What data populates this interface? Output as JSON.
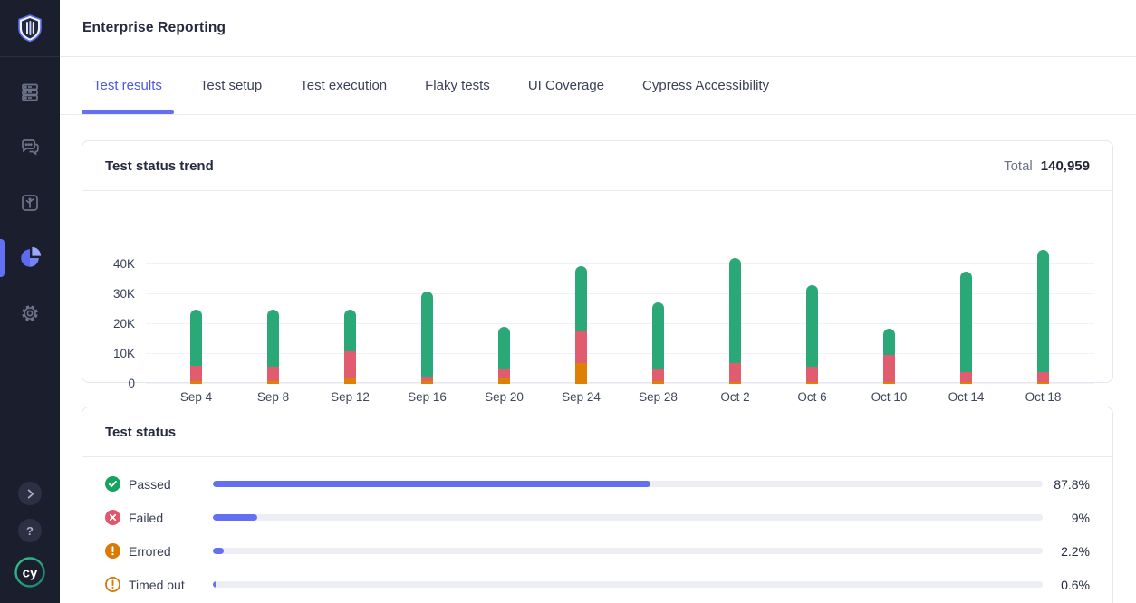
{
  "header": {
    "title": "Enterprise Reporting"
  },
  "colors": {
    "accent_indigo": "#6470f3",
    "tab_active": "#4a57e8",
    "sidebar_bg": "#1b1e2c",
    "chart_passed": "#2ba878",
    "chart_failed": "#e25c6f",
    "chart_errored": "#de8005",
    "icon_passed": "#16a35f",
    "icon_failed": "#e4566b",
    "icon_errored": "#db7a03",
    "icon_timedout": "#d97a06"
  },
  "sidebar": {
    "logo_icon": "shield-logo-icon",
    "items": [
      {
        "name": "runs",
        "icon": "server-stack-icon",
        "active": false
      },
      {
        "name": "messages",
        "icon": "chat-bubbles-icon",
        "active": false
      },
      {
        "name": "branches",
        "icon": "branch-box-icon",
        "active": false
      },
      {
        "name": "insights",
        "icon": "pie-chart-icon",
        "active": true
      },
      {
        "name": "settings",
        "icon": "gear-icon",
        "active": false
      }
    ],
    "bottom": [
      {
        "name": "expand",
        "icon": "chevron-right-icon"
      },
      {
        "name": "help",
        "icon": "question-mark-icon",
        "label": "?"
      },
      {
        "name": "cypress",
        "icon": "cypress-logo-icon",
        "label": "cy"
      }
    ]
  },
  "tabs": {
    "items": [
      {
        "label": "Test results",
        "active": true
      },
      {
        "label": "Test setup",
        "active": false
      },
      {
        "label": "Test execution",
        "active": false
      },
      {
        "label": "Flaky tests",
        "active": false
      },
      {
        "label": "UI Coverage",
        "active": false
      },
      {
        "label": "Cypress Accessibility",
        "active": false
      }
    ]
  },
  "trend_card": {
    "title": "Test status trend",
    "total_label": "Total",
    "total_value": "140,959"
  },
  "chart_data": {
    "type": "bar",
    "stacked": true,
    "title": "Test status trend",
    "categories": [
      "Sep 4",
      "Sep 8",
      "Sep 12",
      "Sep 16",
      "Sep 20",
      "Sep 24",
      "Sep 28",
      "Oct 2",
      "Oct 6",
      "Oct 10",
      "Oct 14",
      "Oct 18"
    ],
    "series": [
      {
        "name": "Errored",
        "color": "#de8005",
        "values": [
          800,
          800,
          2000,
          800,
          2000,
          7000,
          800,
          600,
          700,
          500,
          600,
          600
        ]
      },
      {
        "name": "Failed",
        "color": "#e25c6f",
        "values": [
          5200,
          5000,
          9000,
          1700,
          3000,
          10500,
          4200,
          6500,
          5000,
          9200,
          3200,
          3200
        ]
      },
      {
        "name": "Passed",
        "color": "#2ba878",
        "values": [
          19000,
          19200,
          14000,
          28500,
          14000,
          22000,
          22300,
          35000,
          27300,
          8900,
          33900,
          41000
        ]
      }
    ],
    "yticks": [
      {
        "value": 0,
        "label": "0"
      },
      {
        "value": 10000,
        "label": "10K"
      },
      {
        "value": 20000,
        "label": "20K"
      },
      {
        "value": 30000,
        "label": "30K"
      },
      {
        "value": 40000,
        "label": "40K"
      }
    ],
    "ylim": [
      0,
      50000
    ],
    "grid": true,
    "legend": false
  },
  "status_card": {
    "title": "Test status",
    "bar_scale": 0.6,
    "rows": [
      {
        "label": "Passed",
        "value": 87.8,
        "value_label": "87.8%",
        "icon": "check-circle-icon",
        "color": "#16a35f",
        "style": "filled"
      },
      {
        "label": "Failed",
        "value": 9,
        "value_label": "9%",
        "icon": "x-circle-icon",
        "color": "#e4566b",
        "style": "filled"
      },
      {
        "label": "Errored",
        "value": 2.2,
        "value_label": "2.2%",
        "icon": "exclamation-circle-icon",
        "color": "#db7a03",
        "style": "filled"
      },
      {
        "label": "Timed out",
        "value": 0.6,
        "value_label": "0.6%",
        "icon": "clock-exclamation-icon",
        "color": "#d97a06",
        "style": "outline"
      }
    ]
  }
}
